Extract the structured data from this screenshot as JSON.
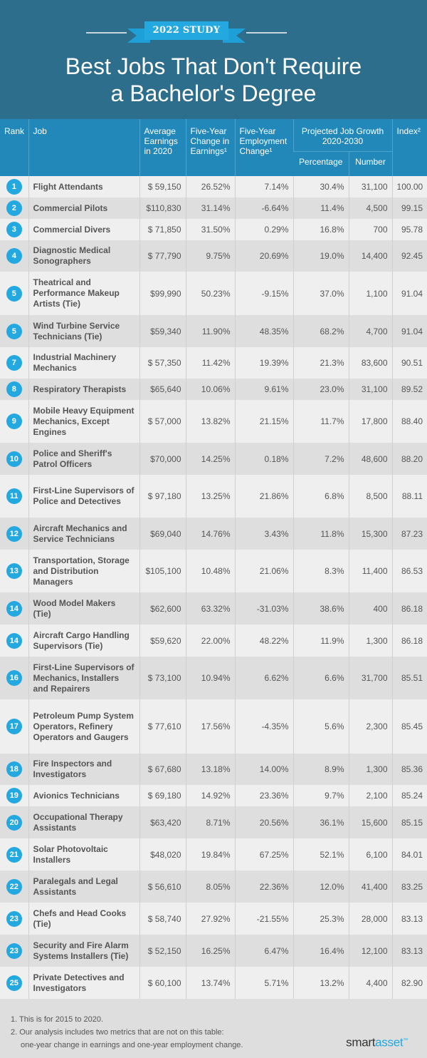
{
  "header": {
    "badge": "2022 STUDY",
    "title_line1": "Best Jobs That Don't Require",
    "title_line2": "a Bachelor's Degree",
    "colors": {
      "background": "#2d6e8c",
      "badge": "#23a8e0",
      "table_header": "#2288ba"
    }
  },
  "table": {
    "columns": {
      "rank": "Rank",
      "job": "Job",
      "earnings": "Average Earnings in 2020",
      "earnings_change": "Five-Year Change in Earnings¹",
      "employment_change": "Five-Year Employment Change¹",
      "growth_group": "Projected Job Growth 2020-2030",
      "growth_pct": "Percentage",
      "growth_num": "Number",
      "index": "Index²"
    },
    "rows": [
      {
        "rank": "1",
        "job": "Flight Attendants",
        "earnings": "$ 59,150",
        "earnings_change": "26.52%",
        "employment_change": "7.14%",
        "growth_pct": "30.4%",
        "growth_num": "31,100",
        "index": "100.00"
      },
      {
        "rank": "2",
        "job": "Commercial Pilots",
        "earnings": "$110,830",
        "earnings_change": "31.14%",
        "employment_change": "-6.64%",
        "growth_pct": "11.4%",
        "growth_num": "4,500",
        "index": "99.15"
      },
      {
        "rank": "3",
        "job": "Commercial Divers",
        "earnings": "$ 71,850",
        "earnings_change": "31.50%",
        "employment_change": "0.29%",
        "growth_pct": "16.8%",
        "growth_num": "700",
        "index": "95.78"
      },
      {
        "rank": "4",
        "job": "Diagnostic Medical Sonographers",
        "earnings": "$ 77,790",
        "earnings_change": "9.75%",
        "employment_change": "20.69%",
        "growth_pct": "19.0%",
        "growth_num": "14,400",
        "index": "92.45"
      },
      {
        "rank": "5",
        "job": "Theatrical and Performance Makeup Artists (Tie)",
        "earnings": "$99,990",
        "earnings_change": "50.23%",
        "employment_change": "-9.15%",
        "growth_pct": "37.0%",
        "growth_num": "1,100",
        "index": "91.04"
      },
      {
        "rank": "5",
        "job": "Wind Turbine Service Technicians (Tie)",
        "earnings": "$59,340",
        "earnings_change": "11.90%",
        "employment_change": "48.35%",
        "growth_pct": "68.2%",
        "growth_num": "4,700",
        "index": "91.04"
      },
      {
        "rank": "7",
        "job": "Industrial Machinery Mechanics",
        "earnings": "$ 57,350",
        "earnings_change": "11.42%",
        "employment_change": "19.39%",
        "growth_pct": "21.3%",
        "growth_num": "83,600",
        "index": "90.51"
      },
      {
        "rank": "8",
        "job": "Respiratory Therapists",
        "earnings": "$65,640",
        "earnings_change": "10.06%",
        "employment_change": "9.61%",
        "growth_pct": "23.0%",
        "growth_num": "31,100",
        "index": "89.52"
      },
      {
        "rank": "9",
        "job": "Mobile Heavy Equipment Mechanics, Except Engines",
        "earnings": "$ 57,000",
        "earnings_change": "13.82%",
        "employment_change": "21.15%",
        "growth_pct": "11.7%",
        "growth_num": "17,800",
        "index": "88.40"
      },
      {
        "rank": "10",
        "job": "Police and Sheriff's Patrol Officers",
        "earnings": "$70,000",
        "earnings_change": "14.25%",
        "employment_change": "0.18%",
        "growth_pct": "7.2%",
        "growth_num": "48,600",
        "index": "88.20"
      },
      {
        "rank": "11",
        "job": "First-Line Supervisors of Police and Detectives",
        "earnings": "$ 97,180",
        "earnings_change": "13.25%",
        "employment_change": "21.86%",
        "growth_pct": "6.8%",
        "growth_num": "8,500",
        "index": "88.11"
      },
      {
        "rank": "12",
        "job": "Aircraft Mechanics and Service Technicians",
        "earnings": "$69,040",
        "earnings_change": "14.76%",
        "employment_change": "3.43%",
        "growth_pct": "11.8%",
        "growth_num": "15,300",
        "index": "87.23"
      },
      {
        "rank": "13",
        "job": "Transportation, Storage and Distribution Managers",
        "earnings": "$105,100",
        "earnings_change": "10.48%",
        "employment_change": "21.06%",
        "growth_pct": "8.3%",
        "growth_num": "11,400",
        "index": "86.53"
      },
      {
        "rank": "14",
        "job": "Wood Model Makers (Tie)",
        "earnings": "$62,600",
        "earnings_change": "63.32%",
        "employment_change": "-31.03%",
        "growth_pct": "38.6%",
        "growth_num": "400",
        "index": "86.18"
      },
      {
        "rank": "14",
        "job": "Aircraft Cargo Handling Supervisors (Tie)",
        "earnings": "$59,620",
        "earnings_change": "22.00%",
        "employment_change": "48.22%",
        "growth_pct": "11.9%",
        "growth_num": "1,300",
        "index": "86.18"
      },
      {
        "rank": "16",
        "job": "First-Line Supervisors of Mechanics, Installers and Repairers",
        "earnings": "$ 73,100",
        "earnings_change": "10.94%",
        "employment_change": "6.62%",
        "growth_pct": "6.6%",
        "growth_num": "31,700",
        "index": "85.51"
      },
      {
        "rank": "17",
        "job": "Petroleum Pump System Operators, Refinery Operators and Gaugers",
        "earnings": "$ 77,610",
        "earnings_change": "17.56%",
        "employment_change": "-4.35%",
        "growth_pct": "5.6%",
        "growth_num": "2,300",
        "index": "85.45"
      },
      {
        "rank": "18",
        "job": "Fire Inspectors and Investigators",
        "earnings": "$ 67,680",
        "earnings_change": "13.18%",
        "employment_change": "14.00%",
        "growth_pct": "8.9%",
        "growth_num": "1,300",
        "index": "85.36"
      },
      {
        "rank": "19",
        "job": "Avionics Technicians",
        "earnings": "$ 69,180",
        "earnings_change": "14.92%",
        "employment_change": "23.36%",
        "growth_pct": "9.7%",
        "growth_num": "2,100",
        "index": "85.24"
      },
      {
        "rank": "20",
        "job": "Occupational Therapy Assistants",
        "earnings": "$63,420",
        "earnings_change": "8.71%",
        "employment_change": "20.56%",
        "growth_pct": "36.1%",
        "growth_num": "15,600",
        "index": "85.15"
      },
      {
        "rank": "21",
        "job": "Solar Photovoltaic Installers",
        "earnings": "$48,020",
        "earnings_change": "19.84%",
        "employment_change": "67.25%",
        "growth_pct": "52.1%",
        "growth_num": "6,100",
        "index": "84.01"
      },
      {
        "rank": "22",
        "job": "Paralegals and Legal Assistants",
        "earnings": "$ 56,610",
        "earnings_change": "8.05%",
        "employment_change": "22.36%",
        "growth_pct": "12.0%",
        "growth_num": "41,400",
        "index": "83.25"
      },
      {
        "rank": "23",
        "job": "Chefs and Head Cooks (Tie)",
        "earnings": "$ 58,740",
        "earnings_change": "27.92%",
        "employment_change": "-21.55%",
        "growth_pct": "25.3%",
        "growth_num": "28,000",
        "index": "83.13"
      },
      {
        "rank": "23",
        "job": "Security and Fire Alarm Systems Installers (Tie)",
        "earnings": "$ 52,150",
        "earnings_change": "16.25%",
        "employment_change": "6.47%",
        "growth_pct": "16.4%",
        "growth_num": "12,100",
        "index": "83.13"
      },
      {
        "rank": "25",
        "job": "Private Detectives and Investigators",
        "earnings": "$ 60,100",
        "earnings_change": "13.74%",
        "employment_change": "5.71%",
        "growth_pct": "13.2%",
        "growth_num": "4,400",
        "index": "82.90"
      }
    ]
  },
  "footer": {
    "note1": "1. This is for 2015 to 2020.",
    "note2_line1": "2. Our analysis includes two metrics that are not on this table:",
    "note2_line2": "one-year change in earnings and one-year employment change.",
    "logo_part1": "smart",
    "logo_part2": "asset",
    "logo_mark": "™"
  }
}
